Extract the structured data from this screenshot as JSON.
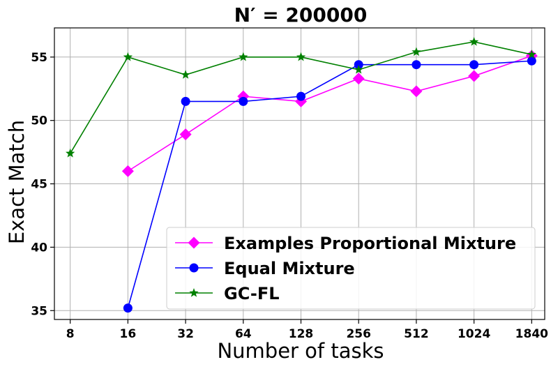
{
  "chart_data": {
    "type": "line",
    "title": "N′ = 200000",
    "xlabel": "Number of tasks",
    "ylabel": "Exact Match",
    "categories": [
      "8",
      "16",
      "32",
      "64",
      "128",
      "256",
      "512",
      "1024",
      "1840"
    ],
    "ylim": [
      34.3,
      57.3
    ],
    "yticks": [
      35,
      40,
      45,
      50,
      55
    ],
    "grid": true,
    "legend_position": "lower-right",
    "series": [
      {
        "name": "Examples Proportional Mixture",
        "color": "#ff00ff",
        "marker": "diamond",
        "values": [
          null,
          46.0,
          48.9,
          51.9,
          51.5,
          53.3,
          52.3,
          53.5,
          55.1
        ]
      },
      {
        "name": "Equal Mixture",
        "color": "#0000ff",
        "marker": "circle",
        "values": [
          null,
          35.2,
          51.5,
          51.5,
          51.9,
          54.4,
          54.4,
          54.4,
          54.7
        ]
      },
      {
        "name": "GC-FL",
        "color": "#008000",
        "marker": "star",
        "values": [
          47.4,
          55.0,
          53.6,
          55.0,
          55.0,
          54.0,
          55.4,
          56.2,
          55.2
        ]
      }
    ]
  }
}
